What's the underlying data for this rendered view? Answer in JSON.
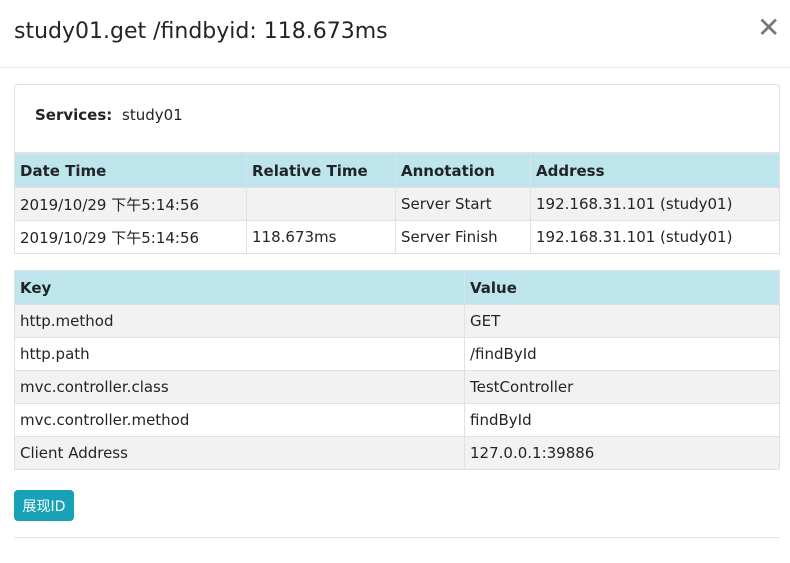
{
  "modal": {
    "title": "study01.get /findbyid: 118.673ms",
    "close_icon": "close-icon"
  },
  "services": {
    "label": "Services:",
    "value": "study01"
  },
  "annotations": {
    "headers": [
      "Date Time",
      "Relative Time",
      "Annotation",
      "Address"
    ],
    "rows": [
      [
        "2019/10/29 下午5:14:56",
        "",
        "Server Start",
        "192.168.31.101 (study01)"
      ],
      [
        "2019/10/29 下午5:14:56",
        "118.673ms",
        "Server Finish",
        "192.168.31.101 (study01)"
      ]
    ]
  },
  "tags": {
    "headers": [
      "Key",
      "Value"
    ],
    "rows": [
      [
        "http.method",
        "GET"
      ],
      [
        "http.path",
        "/findById"
      ],
      [
        "mvc.controller.class",
        "TestController"
      ],
      [
        "mvc.controller.method",
        "findById"
      ],
      [
        "Client Address",
        "127.0.0.1:39886"
      ]
    ]
  },
  "button": {
    "label": "展现ID",
    "color": "#17a2b8"
  }
}
